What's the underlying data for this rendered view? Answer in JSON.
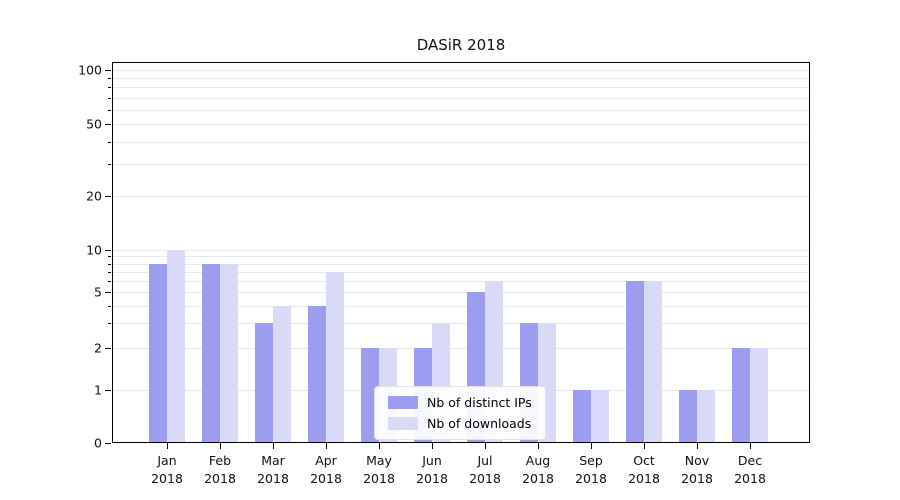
{
  "chart_data": {
    "type": "bar",
    "title": "DASiR 2018",
    "categories": [
      "Jan 2018",
      "Feb 2018",
      "Mar 2018",
      "Apr 2018",
      "May 2018",
      "Jun 2018",
      "Jul 2018",
      "Aug 2018",
      "Sep 2018",
      "Oct 2018",
      "Nov 2018",
      "Dec 2018"
    ],
    "series": [
      {
        "name": "Nb of distinct IPs",
        "color": "#9d9df0",
        "values": [
          8,
          8,
          3,
          4,
          2,
          2,
          5,
          3,
          1,
          6,
          1,
          2
        ]
      },
      {
        "name": "Nb of downloads",
        "color": "#d9d9f8",
        "values": [
          10,
          8,
          4,
          7,
          2,
          3,
          6,
          3,
          1,
          6,
          1,
          2
        ]
      }
    ],
    "yscale": "symlog",
    "ylim": [
      0,
      100
    ],
    "yticks": [
      0,
      1,
      2,
      5,
      10,
      20,
      50,
      100
    ],
    "gridlines": [
      1,
      2,
      3,
      4,
      5,
      6,
      7,
      8,
      9,
      10,
      20,
      30,
      40,
      50,
      60,
      70,
      80,
      90,
      100
    ],
    "grid_color": "#e8e8e8",
    "legend_position": "lower-center-inside"
  }
}
